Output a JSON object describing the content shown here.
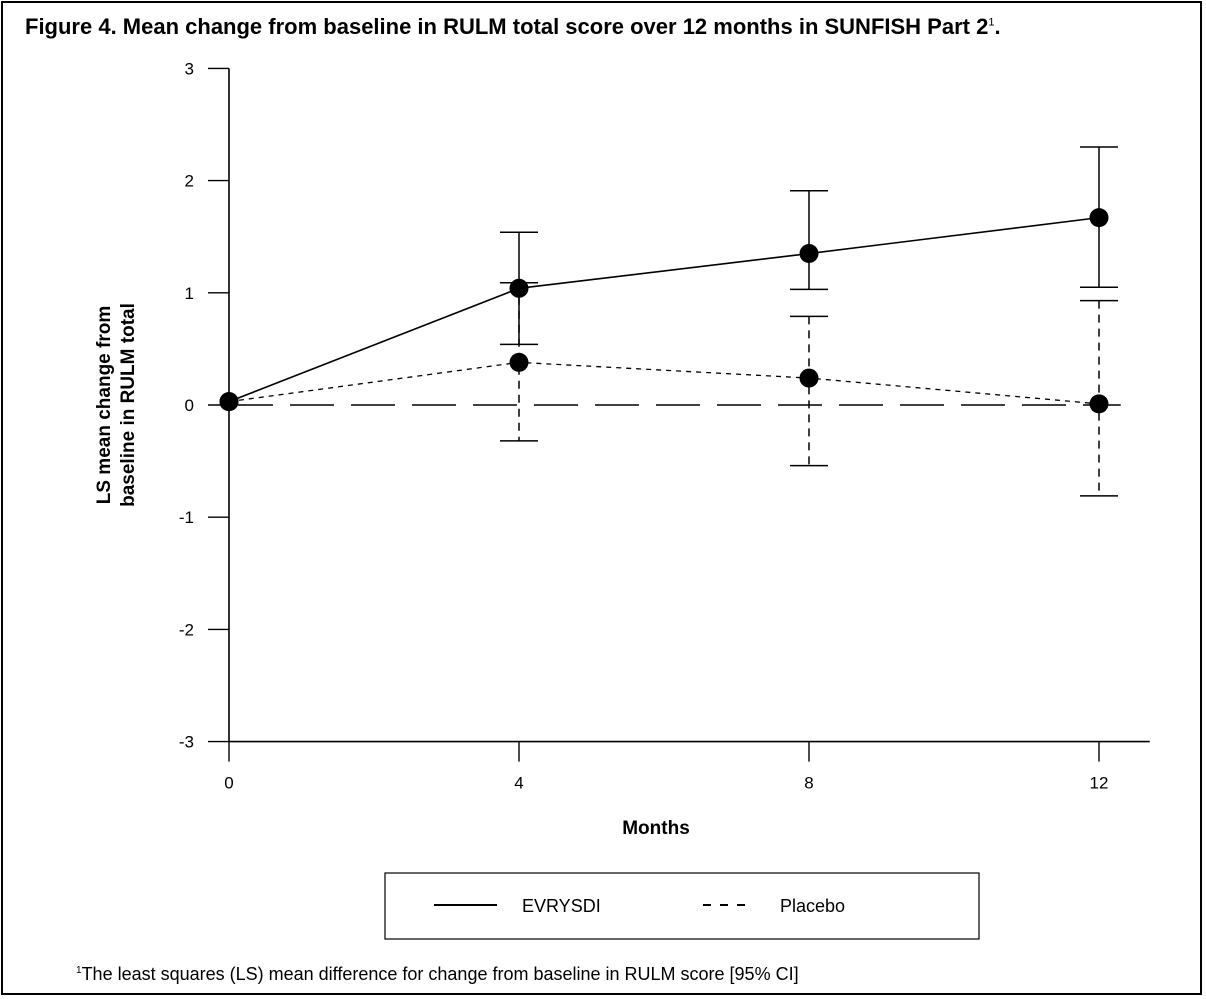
{
  "figure": {
    "title": "Figure 4. Mean change from baseline in RULM total score over 12 months in SUNFISH Part 2",
    "title_superscript": "1",
    "footnote_marker": "1",
    "footnote": "The least squares (LS) mean difference for change from baseline in RULM score [95% CI]"
  },
  "chart_data": {
    "type": "line",
    "title": "Figure 4. Mean change from baseline in RULM total score over 12 months in SUNFISH Part 2",
    "xlabel": "Months",
    "ylabel_lines": [
      "LS mean change from",
      "baseline in RULM total"
    ],
    "x": [
      0,
      4,
      8,
      12
    ],
    "x_ticks": [
      "0",
      "4",
      "8",
      "12"
    ],
    "y_ticks": [
      "3",
      "2",
      "1",
      "0",
      "-1",
      "-2",
      "-3"
    ],
    "y_tick_values": [
      3,
      2,
      1,
      0,
      -1,
      -2,
      -3
    ],
    "ylim": [
      -3,
      3
    ],
    "xlim": [
      0,
      12.7
    ],
    "grid": false,
    "legend_position": "bottom-center",
    "reference_line": {
      "y": 0,
      "style": "long-dash"
    },
    "series": [
      {
        "name": "EVRYSDI",
        "style": "solid",
        "values": [
          0.03,
          1.04,
          1.35,
          1.67
        ],
        "ci_low": [
          null,
          0.54,
          1.03,
          1.05
        ],
        "ci_high": [
          null,
          1.54,
          1.91,
          2.3
        ]
      },
      {
        "name": "Placebo",
        "style": "dashed",
        "values": [
          0.03,
          0.38,
          0.24,
          0.01
        ],
        "ci_low": [
          null,
          -0.32,
          -0.54,
          -0.81
        ],
        "ci_high": [
          null,
          1.09,
          0.79,
          0.93
        ]
      }
    ]
  }
}
